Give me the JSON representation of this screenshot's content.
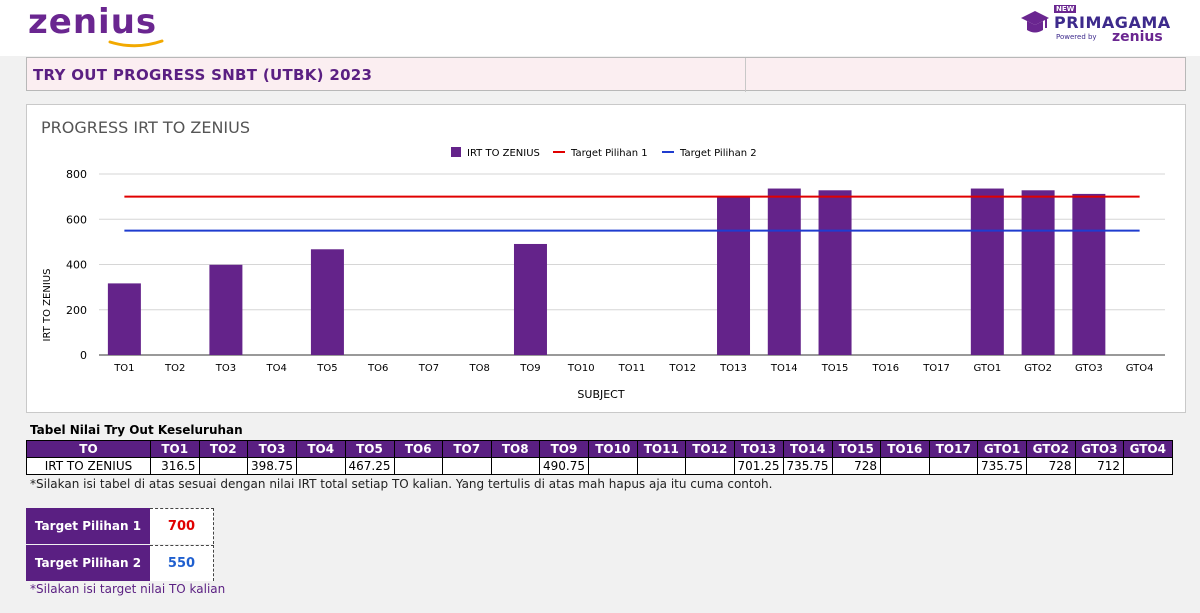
{
  "header": {
    "logo_left": "zenius",
    "logo_right": {
      "badge": "NEW",
      "title": "PRIMAGAMA",
      "powered": "Powered by",
      "brand": "zenius"
    },
    "page_title": "TRY OUT PROGRESS SNBT (UTBK) 2023"
  },
  "colors": {
    "brand_purple": "#5a1f82",
    "bar": "#64238a",
    "target1": "#e00000",
    "target2": "#1f3ccf"
  },
  "chart_data": {
    "type": "bar",
    "title": "PROGRESS IRT TO ZENIUS",
    "xlabel": "SUBJECT",
    "ylabel": "IRT TO ZENIUS",
    "ylim": [
      0,
      800
    ],
    "yticks": [
      0,
      200,
      400,
      600,
      800
    ],
    "legend_position": "top-center",
    "categories": [
      "TO1",
      "TO2",
      "TO3",
      "TO4",
      "TO5",
      "TO6",
      "TO7",
      "TO8",
      "TO9",
      "TO10",
      "TO11",
      "TO12",
      "TO13",
      "TO14",
      "TO15",
      "TO16",
      "TO17",
      "GTO1",
      "GTO2",
      "GTO3",
      "GTO4"
    ],
    "series": [
      {
        "name": "IRT TO ZENIUS",
        "type": "bar",
        "values": [
          316.5,
          null,
          398.75,
          null,
          467.25,
          null,
          null,
          null,
          490.75,
          null,
          null,
          null,
          701.25,
          735.75,
          728,
          null,
          null,
          735.75,
          728,
          712,
          null
        ]
      },
      {
        "name": "Target Pilihan 1",
        "type": "line",
        "value": 700
      },
      {
        "name": "Target Pilihan 2",
        "type": "line",
        "value": 550
      }
    ]
  },
  "table": {
    "caption": "Tabel Nilai Try Out Keseluruhan",
    "headers": [
      "TO",
      "TO1",
      "TO2",
      "TO3",
      "TO4",
      "TO5",
      "TO6",
      "TO7",
      "TO8",
      "TO9",
      "TO10",
      "TO11",
      "TO12",
      "TO13",
      "TO14",
      "TO15",
      "TO16",
      "TO17",
      "GTO1",
      "GTO2",
      "GTO3",
      "GTO4"
    ],
    "row_label": "IRT TO ZENIUS",
    "row_values": [
      "316.5",
      "",
      "398.75",
      "",
      "467.25",
      "",
      "",
      "",
      "490.75",
      "",
      "",
      "",
      "701.25",
      "735.75",
      "728",
      "",
      "",
      "735.75",
      "728",
      "712",
      ""
    ]
  },
  "note_table": "*Silakan isi tabel di atas sesuai dengan nilai IRT total setiap TO kalian. Yang tertulis di atas mah hapus aja itu cuma contoh.",
  "targets": [
    {
      "label": "Target Pilihan 1",
      "value": "700",
      "color": "#e00000"
    },
    {
      "label": "Target Pilihan 2",
      "value": "550",
      "color": "#1f5fcf"
    }
  ],
  "note_target": "*Silakan isi target nilai TO kalian"
}
